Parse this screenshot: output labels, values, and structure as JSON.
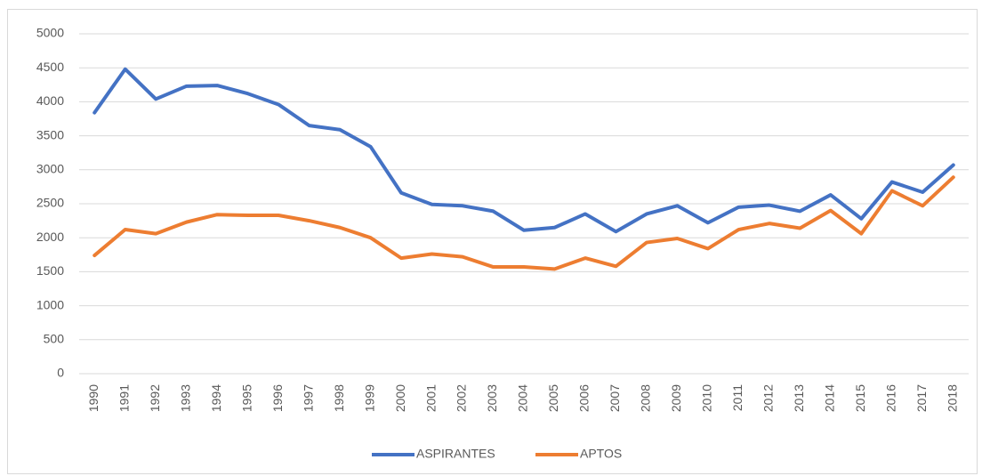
{
  "chart_data": {
    "type": "line",
    "categories": [
      "1990",
      "1991",
      "1992",
      "1993",
      "1994",
      "1995",
      "1996",
      "1997",
      "1998",
      "1999",
      "2000",
      "2001",
      "2002",
      "2003",
      "2004",
      "2005",
      "2006",
      "2007",
      "2008",
      "2009",
      "2010",
      "2011",
      "2012",
      "2013",
      "2014",
      "2015",
      "2016",
      "2017",
      "2018"
    ],
    "series": [
      {
        "name": "ASPIRANTES",
        "color": "#4472c4",
        "values": [
          3840,
          4480,
          4040,
          4230,
          4240,
          4120,
          3960,
          3650,
          3590,
          3340,
          2660,
          2490,
          2470,
          2390,
          2110,
          2150,
          2350,
          2090,
          2350,
          2470,
          2220,
          2450,
          2480,
          2390,
          2630,
          2280,
          2820,
          2670,
          3070
        ]
      },
      {
        "name": "APTOS",
        "color": "#ed7d31",
        "values": [
          1740,
          2120,
          2060,
          2230,
          2340,
          2330,
          2330,
          2250,
          2150,
          2000,
          1700,
          1760,
          1720,
          1570,
          1570,
          1540,
          1700,
          1580,
          1930,
          1990,
          1840,
          2120,
          2210,
          2140,
          2400,
          2060,
          2690,
          2470,
          2890
        ]
      }
    ],
    "ylim": [
      0,
      5000
    ],
    "yticks": [
      0,
      500,
      1000,
      1500,
      2000,
      2500,
      3000,
      3500,
      4000,
      4500,
      5000
    ],
    "grid": true,
    "legend": "bottom"
  }
}
